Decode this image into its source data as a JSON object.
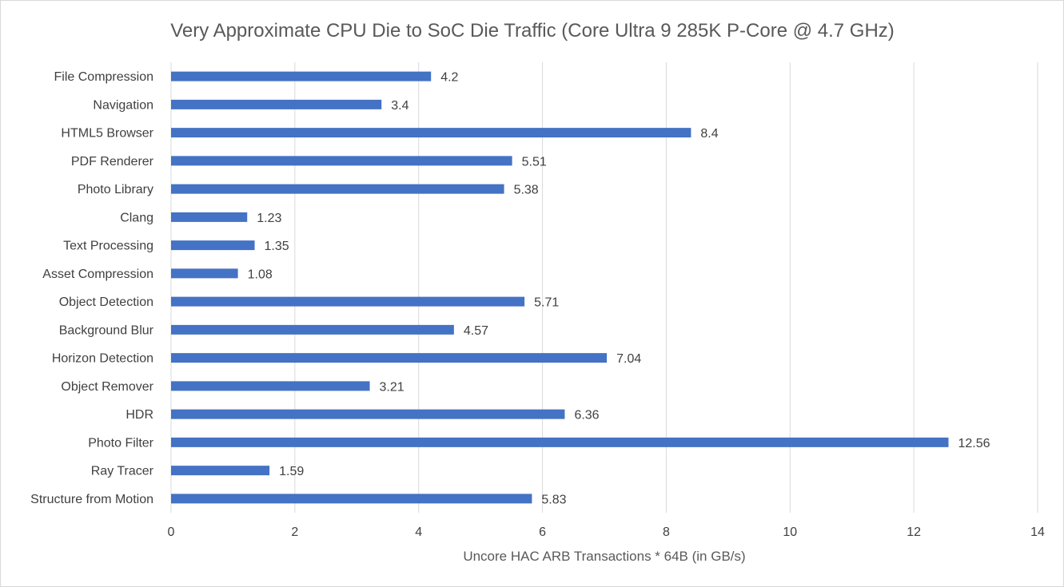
{
  "chart_data": {
    "type": "bar",
    "orientation": "horizontal",
    "title": "Very Approximate CPU Die to SoC Die Traffic (Core Ultra 9 285K P-Core @ 4.7 GHz)",
    "xlabel": "Uncore HAC ARB Transactions * 64B (in GB/s)",
    "ylabel": "",
    "xlim": [
      0,
      14
    ],
    "xticks": [
      0,
      2,
      4,
      6,
      8,
      10,
      12,
      14
    ],
    "grid": true,
    "categories": [
      "File Compression",
      "Navigation",
      "HTML5 Browser",
      "PDF Renderer",
      "Photo Library",
      "Clang",
      "Text Processing",
      "Asset Compression",
      "Object Detection",
      "Background Blur",
      "Horizon Detection",
      "Object Remover",
      "HDR",
      "Photo Filter",
      "Ray Tracer",
      "Structure from Motion"
    ],
    "values": [
      4.2,
      3.4,
      8.4,
      5.51,
      5.38,
      1.23,
      1.35,
      1.08,
      5.71,
      4.57,
      7.04,
      3.21,
      6.36,
      12.56,
      1.59,
      5.83
    ],
    "labels": [
      "4.2",
      "3.4",
      "8.4",
      "5.51",
      "5.38",
      "1.23",
      "1.35",
      "1.08",
      "5.71",
      "4.57",
      "7.04",
      "3.21",
      "6.36",
      "12.56",
      "1.59",
      "5.83"
    ],
    "bar_color": "#4472C4",
    "grid_color": "#D9D9D9"
  }
}
